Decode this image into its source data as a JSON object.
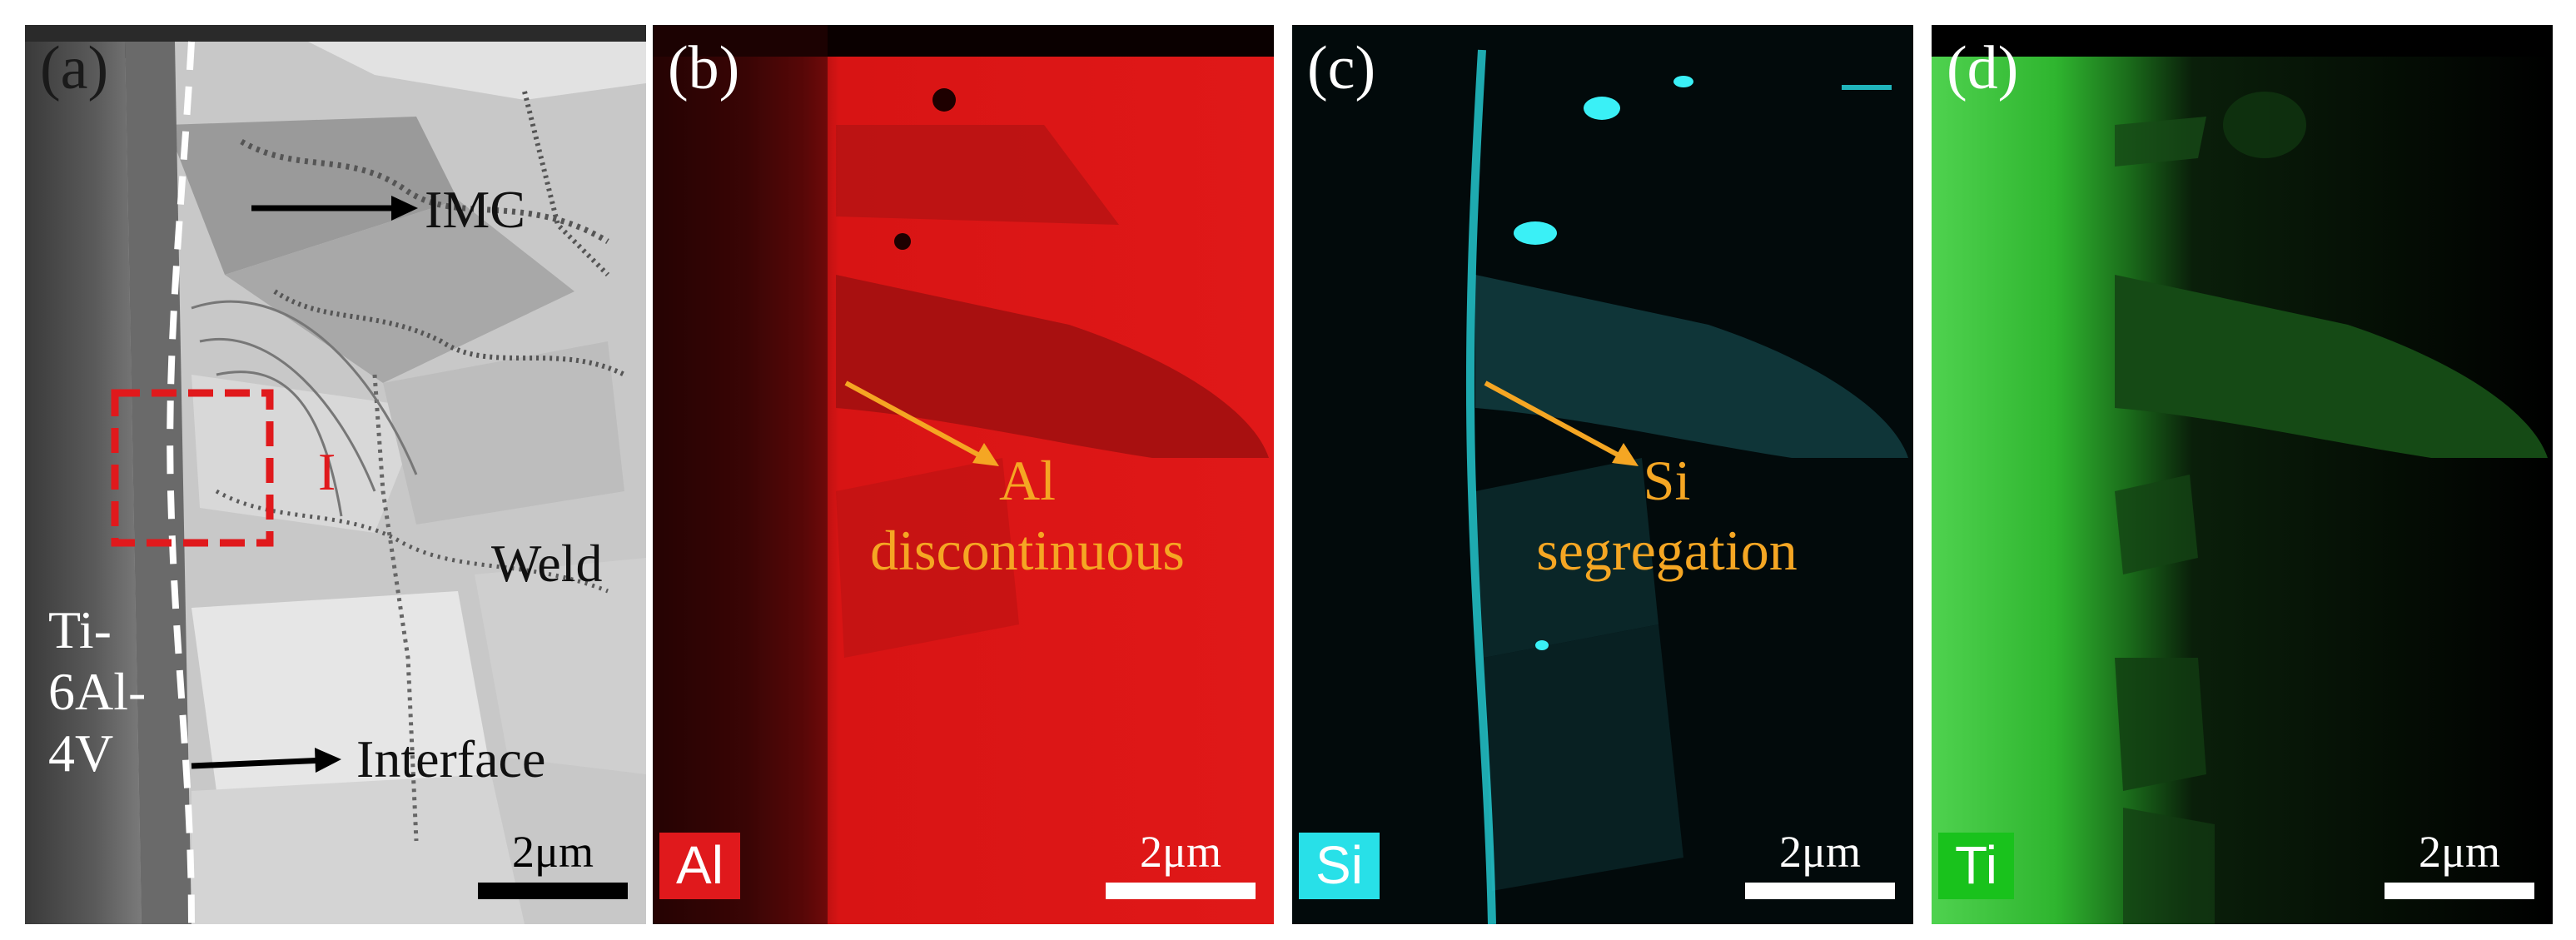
{
  "panels": {
    "a": {
      "letter": "(a)",
      "labels": {
        "imc": "IMC",
        "region": "I",
        "weld": "Weld",
        "interface": "Interface",
        "base_l1": "Ti-",
        "base_l2": "6Al-",
        "base_l3": "4V"
      },
      "scale_bar": "2μm"
    },
    "b": {
      "letter": "(b)",
      "element": "Al",
      "element_color": "#e0191c",
      "annotation_l1": "Al",
      "annotation_l2": "discontinuous",
      "scale_bar": "2μm"
    },
    "c": {
      "letter": "(c)",
      "element": "Si",
      "element_color": "#28e0e8",
      "annotation_l1": "Si",
      "annotation_l2": "segregation",
      "scale_bar": "2μm"
    },
    "d": {
      "letter": "(d)",
      "element": "Ti",
      "element_color": "#19c21c",
      "scale_bar": "2μm"
    }
  },
  "colors": {
    "annotation_orange": "#f5a623",
    "region_box_red": "#e0191c"
  }
}
